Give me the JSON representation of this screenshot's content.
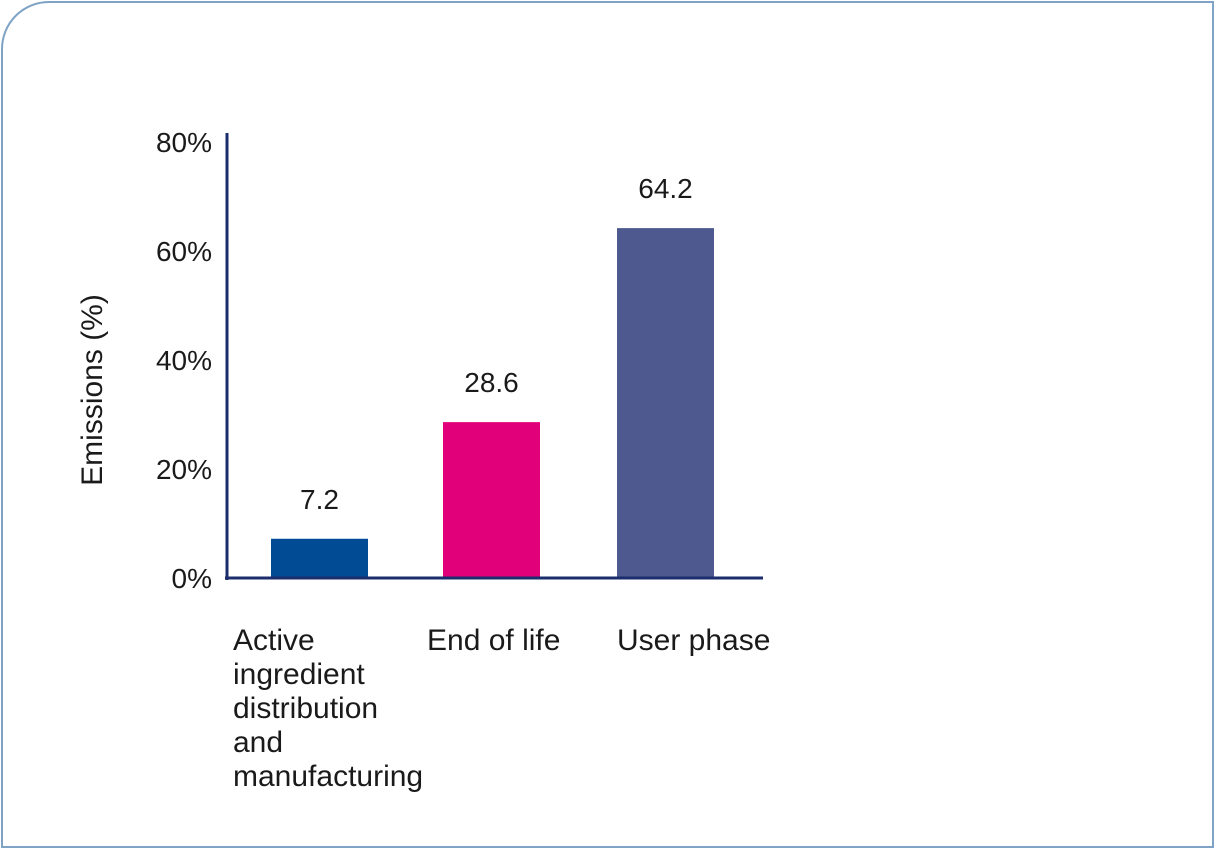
{
  "chart_data": {
    "type": "bar",
    "categories": [
      "Active ingredient distribution and manufacturing",
      "End of life",
      "User phase"
    ],
    "category_lines": [
      [
        "Active",
        "ingredient",
        "distribution",
        "and",
        "manufacturing"
      ],
      [
        "End of life"
      ],
      [
        "User phase"
      ]
    ],
    "values": [
      7.2,
      28.6,
      64.2
    ],
    "value_labels": [
      "7.2",
      "28.6",
      "64.2"
    ],
    "colors": [
      "#004b93",
      "#e2007a",
      "#4e5a8f"
    ],
    "ylabel": "Emissions (%)",
    "ylim": [
      0,
      80
    ],
    "yticks": [
      0,
      20,
      40,
      60,
      80
    ],
    "ytick_labels": [
      "0%",
      "20%",
      "40%",
      "60%",
      "80%"
    ],
    "axis_color": "#1c2d6e",
    "grid": false
  }
}
